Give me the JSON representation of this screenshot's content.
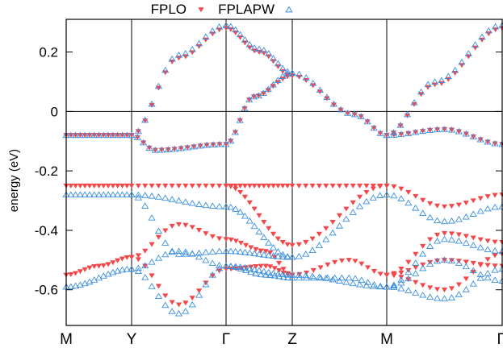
{
  "chart_data": {
    "type": "scatter",
    "ylabel": "energy (eV)",
    "xlabel": "",
    "title": "",
    "ylim": [
      -0.72,
      0.31
    ],
    "xlim": [
      0,
      6
    ],
    "x_ticks": [
      {
        "x": 0,
        "label": "M"
      },
      {
        "x": 1,
        "label": "Y"
      },
      {
        "x": 2,
        "label": "Γ"
      },
      {
        "x": 3,
        "label": "Z"
      },
      {
        "x": 4,
        "label": "M"
      },
      {
        "x": 5.2,
        "label": "Γ"
      }
    ],
    "y_ticks": [
      {
        "y": 0.2,
        "label": "0.2"
      },
      {
        "y": 0,
        "label": "0"
      },
      {
        "y": -0.2,
        "label": "-0.2"
      },
      {
        "y": -0.4,
        "label": "-0.4"
      },
      {
        "y": -0.6,
        "label": "-0.6"
      }
    ],
    "zero_line": true,
    "grid": false,
    "legend_position": "top",
    "series": [
      {
        "name": "FPLO",
        "marker": "triangle-down",
        "color": "#f4474a",
        "bands": [
          [
            [
              0,
              -0.08
            ],
            [
              1,
              -0.08
            ],
            [
              1.25,
              -0.13
            ],
            [
              2,
              -0.11
            ],
            [
              2.42,
              0.05
            ],
            [
              3,
              0.12
            ],
            [
              3.66,
              -0.01
            ],
            [
              4,
              -0.08
            ],
            [
              4.6,
              -0.06
            ],
            [
              5.2,
              -0.11
            ]
          ],
          [
            [
              1,
              -0.08
            ],
            [
              1.5,
              0.18
            ],
            [
              2,
              0.28
            ],
            [
              2.5,
              0.2
            ],
            [
              3,
              0.12
            ]
          ],
          [
            [
              4,
              -0.08
            ],
            [
              4.5,
              0.09
            ],
            [
              5.2,
              0.28
            ]
          ],
          [
            [
              0,
              -0.25
            ],
            [
              1,
              -0.25
            ],
            [
              2,
              -0.25
            ],
            [
              3,
              -0.25
            ],
            [
              4,
              -0.25
            ],
            [
              4.6,
              -0.32
            ],
            [
              5.2,
              -0.28
            ]
          ],
          [
            [
              2,
              -0.25
            ],
            [
              3,
              -0.45
            ],
            [
              4,
              -0.25
            ]
          ],
          [
            [
              0,
              -0.55
            ],
            [
              0.5,
              -0.52
            ],
            [
              1,
              -0.49
            ],
            [
              1.5,
              -0.65
            ],
            [
              2,
              -0.53
            ],
            [
              2.6,
              -0.52
            ],
            [
              3,
              -0.55
            ],
            [
              3.6,
              -0.5
            ],
            [
              4,
              -0.55
            ],
            [
              4.6,
              -0.5
            ],
            [
              5.2,
              -0.52
            ]
          ],
          [
            [
              1,
              -0.49
            ],
            [
              1.5,
              -0.38
            ],
            [
              2,
              -0.43
            ],
            [
              2.6,
              -0.47
            ],
            [
              3,
              -0.55
            ]
          ],
          [
            [
              4,
              -0.55
            ],
            [
              4.6,
              -0.41
            ],
            [
              5.2,
              -0.44
            ]
          ],
          [
            [
              4,
              -0.55
            ],
            [
              4.6,
              -0.6
            ],
            [
              5.2,
              -0.48
            ]
          ]
        ]
      },
      {
        "name": "FPLAPW",
        "marker": "triangle-up-open",
        "color": "#3a8fe0",
        "bands": [
          [
            [
              0,
              -0.08
            ],
            [
              1,
              -0.08
            ],
            [
              1.25,
              -0.13
            ],
            [
              2,
              -0.11
            ],
            [
              2.42,
              0.05
            ],
            [
              3,
              0.13
            ],
            [
              3.66,
              -0.01
            ],
            [
              4,
              -0.08
            ],
            [
              4.6,
              -0.06
            ],
            [
              5.2,
              -0.11
            ]
          ],
          [
            [
              1,
              -0.08
            ],
            [
              1.5,
              0.19
            ],
            [
              2,
              0.29
            ],
            [
              2.5,
              0.21
            ],
            [
              3,
              0.13
            ]
          ],
          [
            [
              4,
              -0.08
            ],
            [
              4.5,
              0.1
            ],
            [
              5.2,
              0.29
            ]
          ],
          [
            [
              0,
              -0.28
            ],
            [
              1,
              -0.28
            ],
            [
              2,
              -0.32
            ],
            [
              3,
              -0.49
            ],
            [
              4,
              -0.28
            ],
            [
              4.6,
              -0.37
            ],
            [
              5.2,
              -0.32
            ]
          ],
          [
            [
              1,
              -0.28
            ],
            [
              1.5,
              -0.48
            ],
            [
              2,
              -0.47
            ],
            [
              3,
              -0.49
            ]
          ],
          [
            [
              0,
              -0.59
            ],
            [
              1,
              -0.53
            ],
            [
              1.5,
              -0.68
            ],
            [
              2,
              -0.52
            ],
            [
              3,
              -0.55
            ],
            [
              4,
              -0.59
            ],
            [
              4.6,
              -0.63
            ],
            [
              5.2,
              -0.53
            ]
          ],
          [
            [
              1,
              -0.53
            ],
            [
              1.5,
              -0.47
            ],
            [
              2,
              -0.52
            ],
            [
              2.6,
              -0.55
            ],
            [
              3,
              -0.56
            ],
            [
              3.6,
              -0.56
            ],
            [
              4,
              -0.59
            ]
          ],
          [
            [
              4,
              -0.59
            ],
            [
              4.6,
              -0.43
            ],
            [
              5.2,
              -0.47
            ]
          ],
          [
            [
              4,
              -0.59
            ],
            [
              4.6,
              -0.5
            ],
            [
              5.2,
              -0.57
            ]
          ]
        ]
      }
    ]
  }
}
